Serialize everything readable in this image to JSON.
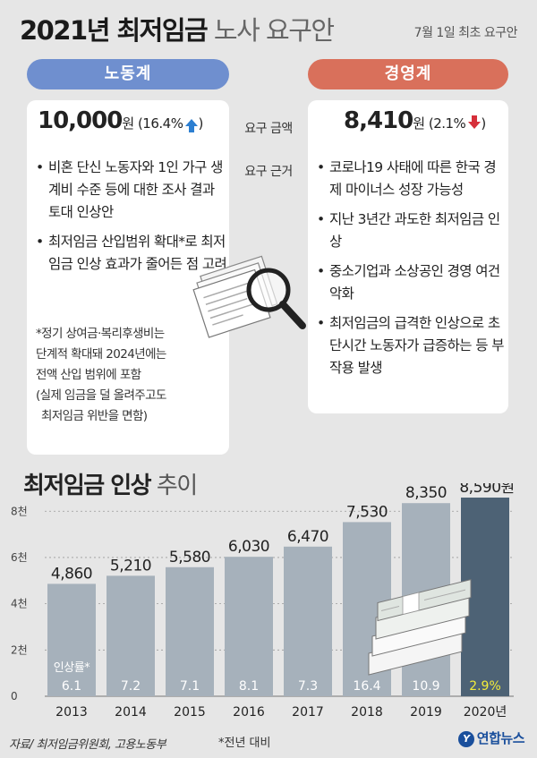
{
  "header": {
    "title_bold": "2021년 최저임금",
    "title_light": " 노사 요구안",
    "subtitle": "7월 1일 최초 요구안"
  },
  "labor": {
    "pill": "노동계",
    "amount": "10,000",
    "unit": "원",
    "change": "(16.4%",
    "change_close": ")",
    "bullets": [
      "비혼 단신 노동자와 1인 가구 생계비 수준 등에 대한 조사 결과 토대 인상안",
      "최저임금 산입범위 확대*로 최저임금 인상 효과가 줄어든 점 고려"
    ],
    "note_lines": [
      "*정기 상여금·복리후생비는",
      "단계적 확대돼 2024년에는",
      "전액 산입 범위에 포함",
      "(실제 임금을 덜 올려주고도",
      "최저임금 위반을 면함)"
    ]
  },
  "business": {
    "pill": "경영계",
    "amount": "8,410",
    "unit": "원",
    "change": "(2.1%",
    "change_close": ")",
    "bullets": [
      "코로나19 사태에 따른 한국 경제 마이너스 성장 가능성",
      "지난 3년간 과도한 최저임금 인상",
      "중소기업과 소상공인 경영 여건 악화",
      "최저임금의 급격한 인상으로 초단시간 노동자가 급증하는 등 부작용 발생"
    ]
  },
  "middle": {
    "amount_label": "요구 금액",
    "reason_label": "요구 근거"
  },
  "chart_title": {
    "bold": "최저임금 인상",
    "light": " 추이"
  },
  "chart_data": {
    "type": "bar",
    "categories": [
      "2013",
      "2014",
      "2015",
      "2016",
      "2017",
      "2018",
      "2019",
      "2020년"
    ],
    "values": [
      4860,
      5210,
      5580,
      6030,
      6470,
      7530,
      8350,
      8590
    ],
    "value_labels": [
      "4,860",
      "5,210",
      "5,580",
      "6,030",
      "6,470",
      "7,530",
      "8,350",
      "8,590원"
    ],
    "increase_rates": [
      "6.1",
      "7.2",
      "7.1",
      "8.1",
      "7.3",
      "16.4",
      "10.9",
      "2.9%"
    ],
    "rate_caption": "인상률*",
    "yticks": [
      0,
      2000,
      4000,
      6000,
      8000
    ],
    "ytick_labels": [
      "0",
      "2천",
      "4천",
      "6천",
      "8천"
    ],
    "ylim": [
      0,
      8900
    ],
    "colors": {
      "bar": "#a6b1bb",
      "bar_last": "#4d6275",
      "rate_text": "#ffffff",
      "rate_last": "#f2ec3a",
      "grid": "#9a9a9a"
    },
    "footnote": "*전년 대비"
  },
  "footer": {
    "source": "자료/ 최저임금위원회, 고용노동부",
    "logo_icon": "Y",
    "logo": "연합뉴스"
  },
  "colors": {
    "labor": "#6f8fcf",
    "business": "#d9705b",
    "up_arrow": "#2d7fd1",
    "down_arrow": "#d62f3a"
  },
  "icons": {
    "labor_change": "up-arrow-icon",
    "business_change": "down-arrow-icon",
    "illustration": "documents-magnifier-icon",
    "chart_illustration": "money-stack-icon"
  }
}
